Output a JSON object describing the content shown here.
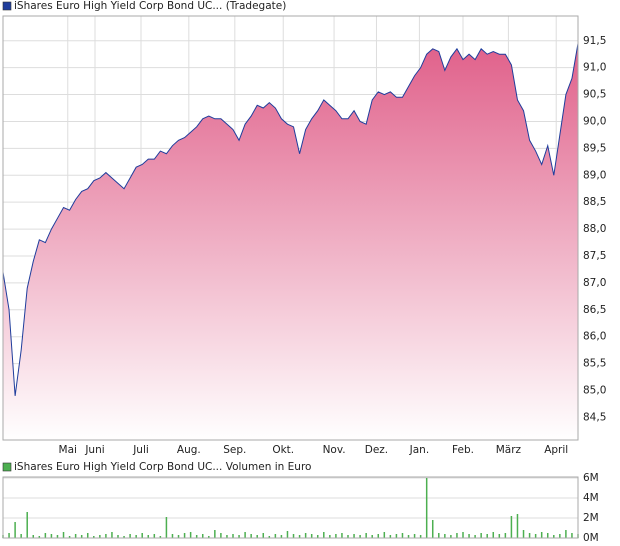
{
  "chart_data": [
    {
      "type": "area",
      "series": [
        {
          "name": "iShares Euro High Yield Corp Bond UC... (Tradegate)",
          "color": "#1f3d9c",
          "values": [
            87.2,
            86.5,
            84.9,
            85.75,
            86.9,
            87.4,
            87.8,
            87.75,
            88.0,
            88.2,
            88.4,
            88.35,
            88.55,
            88.7,
            88.75,
            88.9,
            88.95,
            89.05,
            88.95,
            88.85,
            88.75,
            88.95,
            89.15,
            89.2,
            89.3,
            89.3,
            89.45,
            89.4,
            89.55,
            89.65,
            89.7,
            89.8,
            89.9,
            90.05,
            90.1,
            90.05,
            90.05,
            89.95,
            89.85,
            89.65,
            89.95,
            90.1,
            90.3,
            90.25,
            90.35,
            90.25,
            90.05,
            89.95,
            89.9,
            89.4,
            89.85,
            90.05,
            90.2,
            90.4,
            90.3,
            90.2,
            90.05,
            90.05,
            90.2,
            90.0,
            89.95,
            90.4,
            90.55,
            90.5,
            90.55,
            90.45,
            90.45,
            90.65,
            90.85,
            91.0,
            91.25,
            91.35,
            91.3,
            90.95,
            91.2,
            91.35,
            91.15,
            91.25,
            91.15,
            91.35,
            91.25,
            91.3,
            91.25,
            91.25,
            91.05,
            90.4,
            90.2,
            89.65,
            89.45,
            89.2,
            89.55,
            89.0,
            89.75,
            90.5,
            90.8,
            91.45
          ]
        }
      ],
      "fill_color": "#e0608a",
      "xlim": [
        0,
        95
      ],
      "xticks": [
        {
          "value": 10.7,
          "label": "Mai"
        },
        {
          "value": 15.2,
          "label": "Juni"
        },
        {
          "value": 22.8,
          "label": "Juli"
        },
        {
          "value": 30.7,
          "label": "Aug."
        },
        {
          "value": 38.3,
          "label": "Sep."
        },
        {
          "value": 46.3,
          "label": "Okt."
        },
        {
          "value": 54.7,
          "label": "Nov."
        },
        {
          "value": 61.7,
          "label": "Dez."
        },
        {
          "value": 68.8,
          "label": "Jan."
        },
        {
          "value": 76.0,
          "label": "Feb."
        },
        {
          "value": 83.5,
          "label": "März"
        },
        {
          "value": 91.4,
          "label": "April"
        }
      ],
      "ylim": [
        84.08,
        91.96
      ],
      "yticks": [
        {
          "value": 84.5,
          "label": "84,5"
        },
        {
          "value": 85,
          "label": "85,0"
        },
        {
          "value": 85.5,
          "label": "85,5"
        },
        {
          "value": 86,
          "label": "86,0"
        },
        {
          "value": 86.5,
          "label": "86,5"
        },
        {
          "value": 87,
          "label": "87,0"
        },
        {
          "value": 87.5,
          "label": "87,5"
        },
        {
          "value": 88,
          "label": "88,0"
        },
        {
          "value": 88.5,
          "label": "88,5"
        },
        {
          "value": 89,
          "label": "89,0"
        },
        {
          "value": 89.5,
          "label": "89,5"
        },
        {
          "value": 90,
          "label": "90,0"
        },
        {
          "value": 90.5,
          "label": "90,5"
        },
        {
          "value": 91,
          "label": "91,0"
        },
        {
          "value": 91.5,
          "label": "91,5"
        }
      ],
      "grid": true
    },
    {
      "type": "bar",
      "series": [
        {
          "name": "iShares Euro High Yield Corp Bond UC... Volumen in Euro",
          "color": "#4caf50",
          "values": [
            0.3,
            0.5,
            1.6,
            0.4,
            2.6,
            0.3,
            0.2,
            0.5,
            0.4,
            0.3,
            0.6,
            0.2,
            0.4,
            0.3,
            0.5,
            0.2,
            0.3,
            0.4,
            0.6,
            0.3,
            0.2,
            0.4,
            0.3,
            0.5,
            0.3,
            0.4,
            0.2,
            2.1,
            0.4,
            0.3,
            0.5,
            0.6,
            0.3,
            0.4,
            0.2,
            0.8,
            0.5,
            0.3,
            0.4,
            0.3,
            0.6,
            0.4,
            0.3,
            0.5,
            0.2,
            0.4,
            0.3,
            0.7,
            0.4,
            0.3,
            0.5,
            0.4,
            0.3,
            0.6,
            0.3,
            0.4,
            0.5,
            0.3,
            0.4,
            0.3,
            0.5,
            0.3,
            0.4,
            0.6,
            0.3,
            0.4,
            0.5,
            0.3,
            0.4,
            0.3,
            6.0,
            1.8,
            0.5,
            0.4,
            0.3,
            0.5,
            0.6,
            0.4,
            0.3,
            0.5,
            0.4,
            0.6,
            0.4,
            0.5,
            2.2,
            2.4,
            0.8,
            0.5,
            0.4,
            0.6,
            0.5,
            0.3,
            0.4,
            0.8,
            0.5,
            0.4
          ]
        }
      ],
      "xlim": [
        0,
        95
      ],
      "ylim": [
        0,
        6.1
      ],
      "yticks": [
        {
          "value": 0,
          "label": "0M"
        },
        {
          "value": 2,
          "label": "2M"
        },
        {
          "value": 4,
          "label": "4M"
        },
        {
          "value": 6,
          "label": "6M"
        }
      ],
      "grid": true
    }
  ]
}
